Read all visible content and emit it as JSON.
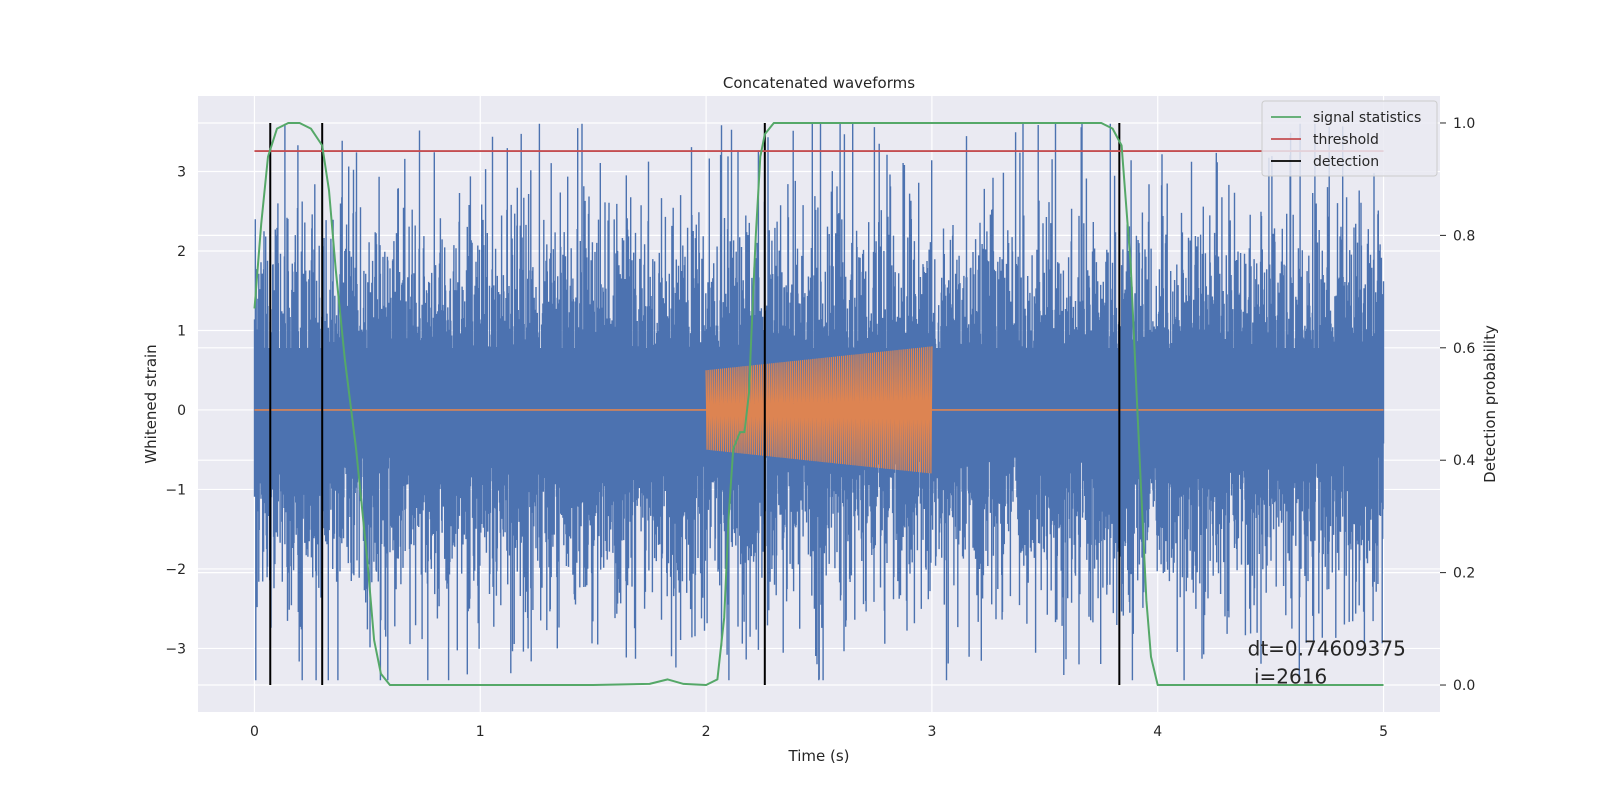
{
  "chart_data": {
    "type": "line",
    "title": "Concatenated waveforms",
    "xlabel": "Time (s)",
    "ylabel_left": "Whitened strain",
    "ylabel_right": "Detection probability",
    "xlim": [
      -0.25,
      5.25
    ],
    "ylim_left": [
      -3.8,
      3.95
    ],
    "ylim_right": [
      -0.048,
      1.048
    ],
    "x_ticks": [
      0,
      1,
      2,
      3,
      4,
      5
    ],
    "x_tick_labels": [
      "0",
      "1",
      "2",
      "3",
      "4",
      "5"
    ],
    "y_left_ticks": [
      -3,
      -2,
      -1,
      0,
      1,
      2,
      3
    ],
    "y_left_tick_labels": [
      "−3",
      "−2",
      "−1",
      "0",
      "1",
      "2",
      "3"
    ],
    "y_right_ticks": [
      0.0,
      0.2,
      0.4,
      0.6,
      0.8,
      1.0
    ],
    "y_right_tick_labels": [
      "0.0",
      "0.2",
      "0.4",
      "0.6",
      "0.8",
      "1.0"
    ],
    "grid": true,
    "legend_position": "top-right",
    "legend": [
      {
        "label": "signal statistics",
        "color": "#55a868"
      },
      {
        "label": "threshold",
        "color": "#c44e52"
      },
      {
        "label": "detection",
        "color": "#000000"
      }
    ],
    "series": [
      {
        "name": "whitened strain",
        "axis": "left",
        "color": "#4c72b0",
        "x_range": [
          0,
          5
        ],
        "amplitude_envelope": [
          -3.4,
          3.6
        ]
      },
      {
        "name": "injected waveform",
        "axis": "left",
        "color": "#dd8452",
        "x_range": [
          2.0,
          3.0
        ],
        "amplitude_start": 0.5,
        "amplitude_end": 0.8
      },
      {
        "name": "signal statistics",
        "axis": "right",
        "color": "#55a868",
        "x": [
          0.0,
          0.03,
          0.06,
          0.1,
          0.15,
          0.2,
          0.25,
          0.3,
          0.33,
          0.36,
          0.4,
          0.45,
          0.5,
          0.53,
          0.56,
          0.6,
          0.8,
          1.0,
          1.5,
          1.75,
          1.83,
          1.9,
          2.0,
          2.05,
          2.08,
          2.1,
          2.12,
          2.15,
          2.17,
          2.19,
          2.2,
          2.22,
          2.24,
          2.26,
          2.3,
          2.5,
          3.0,
          3.5,
          3.75,
          3.8,
          3.84,
          3.88,
          3.92,
          3.95,
          3.97,
          4.0,
          4.5,
          5.0
        ],
        "y": [
          0.67,
          0.82,
          0.94,
          0.99,
          1.0,
          1.0,
          0.99,
          0.96,
          0.88,
          0.74,
          0.58,
          0.42,
          0.22,
          0.08,
          0.02,
          0.0,
          0.0,
          0.0,
          0.0,
          0.002,
          0.01,
          0.002,
          0.0,
          0.01,
          0.12,
          0.3,
          0.42,
          0.45,
          0.45,
          0.52,
          0.62,
          0.8,
          0.94,
          0.98,
          1.0,
          1.0,
          1.0,
          1.0,
          1.0,
          0.99,
          0.96,
          0.75,
          0.4,
          0.15,
          0.05,
          0.0,
          0.0,
          0.0
        ]
      },
      {
        "name": "threshold",
        "axis": "right",
        "color": "#c44e52",
        "x": [
          0,
          5
        ],
        "y": [
          0.95,
          0.95
        ]
      }
    ],
    "detections": [
      0.07,
      0.3,
      2.26,
      3.83
    ],
    "annotation": {
      "line1": "dt=0.74609375",
      "line2": " i=2616",
      "x": 4.5,
      "y": -3.0
    }
  }
}
